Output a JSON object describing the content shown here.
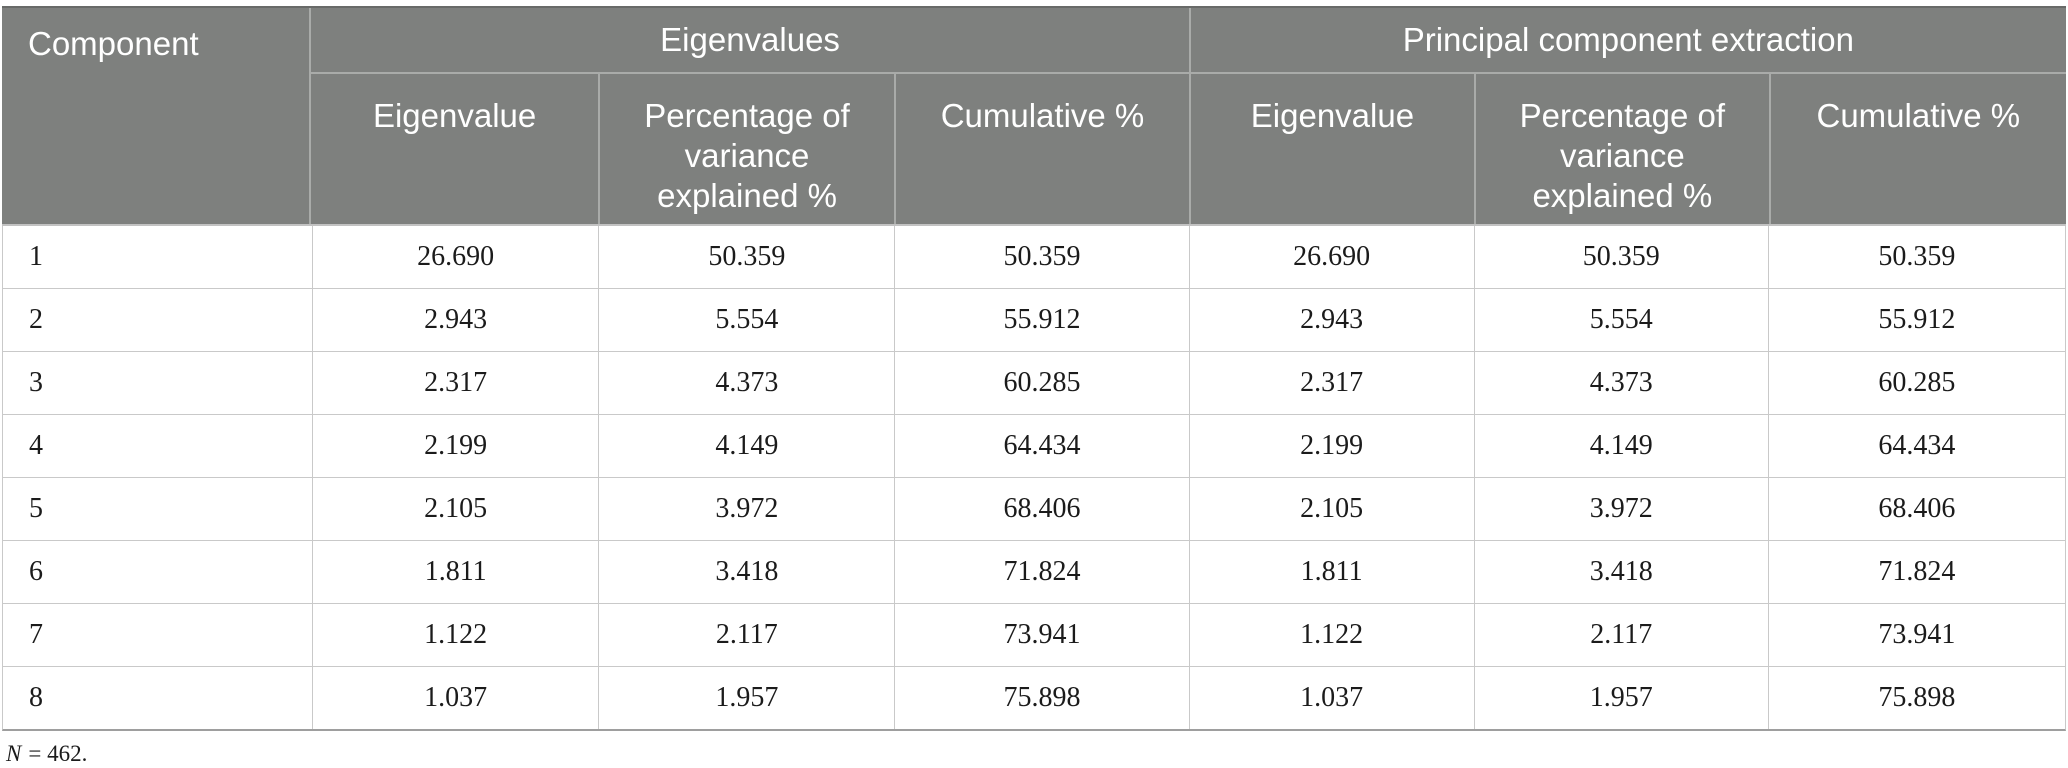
{
  "table": {
    "component_header": "Component",
    "group_headers": [
      {
        "label": "Eigenvalues"
      },
      {
        "label": "Principal component extraction"
      }
    ],
    "sub_headers": [
      "Eigenvalue",
      "Percentage of variance explained %",
      "Cumulative %",
      "Eigenvalue",
      "Percentage of variance explained %",
      "Cumulative %"
    ],
    "rows": [
      {
        "component": "1",
        "values": [
          "26.690",
          "50.359",
          "50.359",
          "26.690",
          "50.359",
          "50.359"
        ]
      },
      {
        "component": "2",
        "values": [
          "2.943",
          "5.554",
          "55.912",
          "2.943",
          "5.554",
          "55.912"
        ]
      },
      {
        "component": "3",
        "values": [
          "2.317",
          "4.373",
          "60.285",
          "2.317",
          "4.373",
          "60.285"
        ]
      },
      {
        "component": "4",
        "values": [
          "2.199",
          "4.149",
          "64.434",
          "2.199",
          "4.149",
          "64.434"
        ]
      },
      {
        "component": "5",
        "values": [
          "2.105",
          "3.972",
          "68.406",
          "2.105",
          "3.972",
          "68.406"
        ]
      },
      {
        "component": "6",
        "values": [
          "1.811",
          "3.418",
          "71.824",
          "1.811",
          "3.418",
          "71.824"
        ]
      },
      {
        "component": "7",
        "values": [
          "1.122",
          "2.117",
          "73.941",
          "1.122",
          "2.117",
          "73.941"
        ]
      },
      {
        "component": "8",
        "values": [
          "1.037",
          "1.957",
          "75.898",
          "1.037",
          "1.957",
          "75.898"
        ]
      }
    ],
    "footnote": {
      "symbol": "N",
      "text": "= 462."
    }
  },
  "colors": {
    "header_bg": "#7e807e",
    "header_text": "#ffffff",
    "header_separator": "#a9aba9",
    "row_line": "#c9c9c9",
    "table_bottom_line": "#9e9e9e",
    "body_text": "#1b1b1b",
    "page_bg": "#ffffff"
  }
}
